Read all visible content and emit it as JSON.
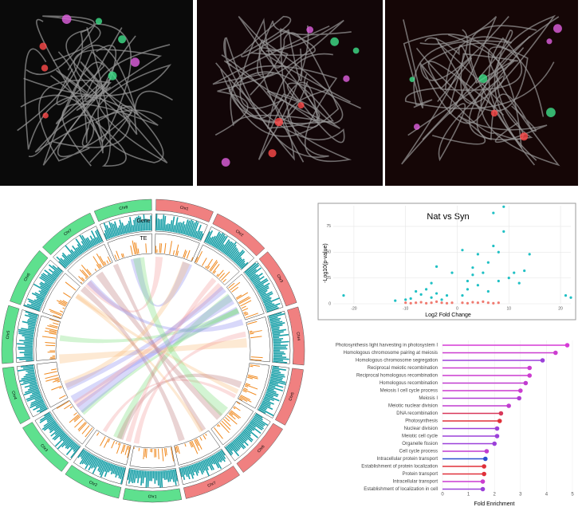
{
  "chart_data": [
    {
      "type": "circos",
      "track_labels": [
        "Gene",
        "TE"
      ],
      "segments": [
        {
          "name": "Chr1",
          "color": "#f08080"
        },
        {
          "name": "Chr2",
          "color": "#f08080"
        },
        {
          "name": "Chr3",
          "color": "#f08080"
        },
        {
          "name": "Chr4",
          "color": "#f08080"
        },
        {
          "name": "Chr5",
          "color": "#f08080"
        },
        {
          "name": "Chr6",
          "color": "#f08080"
        },
        {
          "name": "Chr7",
          "color": "#f08080"
        },
        {
          "name": "Chr1",
          "color": "#5ee08e"
        },
        {
          "name": "Chr2",
          "color": "#5ee08e"
        },
        {
          "name": "Chr3",
          "color": "#5ee08e"
        },
        {
          "name": "Chr4",
          "color": "#5ee08e"
        },
        {
          "name": "Chr5",
          "color": "#5ee08e"
        },
        {
          "name": "Chr6",
          "color": "#5ee08e"
        },
        {
          "name": "Chr7",
          "color": "#5ee08e"
        },
        {
          "name": "Chr8",
          "color": "#5ee08e"
        }
      ]
    },
    {
      "type": "scatter",
      "title": "Nat vs Syn",
      "x_label": "Log2 Fold Change",
      "y_label": "-Log10(p-value)",
      "xlim": [
        -24,
        22
      ],
      "ylim": [
        0,
        95
      ],
      "xticks": [
        -20,
        -10,
        0,
        10,
        20
      ],
      "yticks": [
        0,
        25,
        50,
        75
      ],
      "grid": true,
      "series": [
        {
          "color": "#1fc0c4",
          "x": [
            -22,
            -12,
            -10,
            -9,
            -8,
            -7,
            -6,
            -5,
            -5,
            -4,
            -3,
            -2,
            1,
            2,
            2,
            3,
            3,
            4,
            4,
            5,
            6,
            6,
            7,
            8,
            8,
            9,
            10,
            11,
            12,
            13,
            14,
            7,
            9,
            21,
            22,
            -4,
            1,
            -1
          ],
          "y": [
            8,
            3,
            4,
            5,
            12,
            9,
            14,
            20,
            6,
            10,
            4,
            8,
            8,
            14,
            22,
            35,
            28,
            48,
            18,
            30,
            40,
            12,
            56,
            50,
            22,
            70,
            25,
            30,
            20,
            32,
            48,
            88,
            94,
            8,
            6,
            36,
            52,
            30
          ]
        },
        {
          "color": "#f07a70",
          "x": [
            -10,
            -9,
            -8,
            -7,
            -6,
            -5,
            -4,
            -3,
            -2,
            -1,
            1,
            2,
            3,
            4,
            5,
            6,
            7,
            8
          ],
          "y": [
            1,
            0.5,
            1,
            1.5,
            0.5,
            1,
            2,
            1,
            0.5,
            1,
            1,
            0.5,
            1.5,
            1,
            2,
            1,
            0.5,
            1
          ]
        }
      ]
    },
    {
      "type": "lollipop",
      "x_label": "Fold Enrichment",
      "xlim": [
        0,
        5
      ],
      "xticks": [
        0,
        1,
        2,
        3,
        4,
        5
      ],
      "categories": [
        "Photosynthesis light harvesting in photosystem I",
        "Homologous chromosome pairing at meiosis",
        "Homologous chromosome segregation",
        "Reciprocal meiotic recombination",
        "Reciprocal homologous recombination",
        "Homologous recombination",
        "Meiosis I cell cycle process",
        "Meiosis I",
        "Meiotic nuclear division",
        "DNA recombination",
        "Photosynthesis",
        "Nuclear division",
        "Meiotic cell cycle",
        "Organelle fission",
        "Cell cycle process",
        "Intracellular protein transport",
        "Establishment of protein localization",
        "Protein transport",
        "Intracellular transport",
        "Establishment of localization in cell"
      ],
      "values": [
        4.8,
        4.35,
        3.85,
        3.35,
        3.35,
        3.2,
        3.0,
        2.95,
        2.55,
        2.25,
        2.2,
        2.1,
        2.1,
        2.0,
        1.7,
        1.65,
        1.6,
        1.6,
        1.55,
        1.55
      ],
      "colors": [
        "#d63ad6",
        "#cc3cd0",
        "#9b40d9",
        "#cc3cd0",
        "#cc3cd0",
        "#c03cd0",
        "#cc3cd0",
        "#b03cd4",
        "#c03cd0",
        "#d8385a",
        "#e0303a",
        "#9b40d9",
        "#9b40d9",
        "#9b40d9",
        "#c03cd0",
        "#2a4fd0",
        "#e0303a",
        "#e0303a",
        "#cc3cd0",
        "#9b40d9"
      ]
    }
  ]
}
